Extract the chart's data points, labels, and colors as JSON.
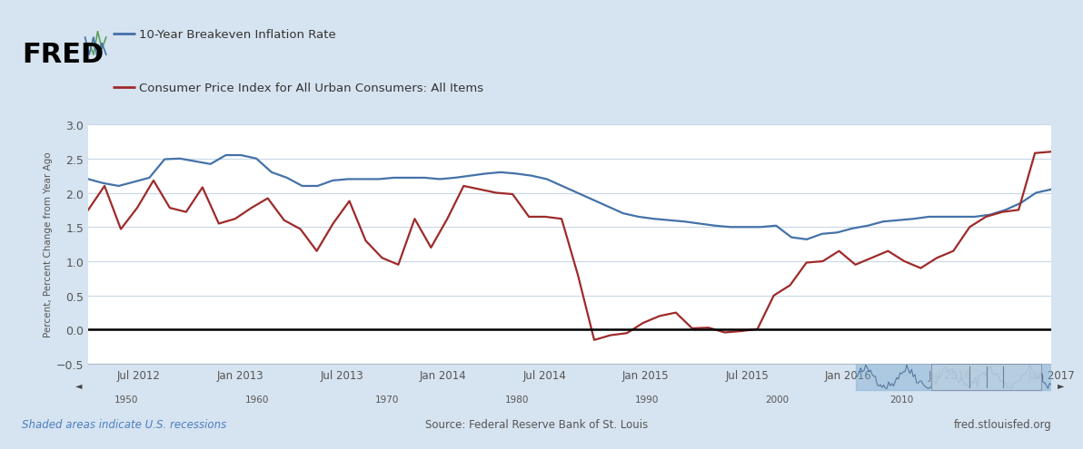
{
  "legend1": "10-Year Breakeven Inflation Rate",
  "legend2": "Consumer Price Index for All Urban Consumers: All Items",
  "ylabel": "Percent, Percent Change from Year Ago",
  "ylim": [
    -0.5,
    3.0
  ],
  "yticks": [
    -0.5,
    0.0,
    0.5,
    1.0,
    1.5,
    2.0,
    2.5,
    3.0
  ],
  "xtick_labels": [
    "Jul 2012",
    "Jan 2013",
    "Jul 2013",
    "Jan 2014",
    "Jul 2014",
    "Jan 2015",
    "Jul 2015",
    "Jan 2016",
    "Jul 2016",
    "Jan 2017"
  ],
  "xtick_pos": [
    3,
    9,
    15,
    21,
    27,
    33,
    39,
    45,
    51,
    57
  ],
  "footer_left": "Shaded areas indicate U.S. recessions",
  "footer_center": "Source: Federal Reserve Bank of St. Louis",
  "footer_right": "fred.stlouisfed.org",
  "bg_color": "#d6e3f0",
  "plot_bg_color": "#ffffff",
  "blue_color": "#4472a8",
  "red_color": "#9e2a2a",
  "blue_line": [
    2.2,
    2.14,
    2.1,
    2.16,
    2.22,
    2.49,
    2.5,
    2.46,
    2.42,
    2.55,
    2.55,
    2.5,
    2.3,
    2.22,
    2.1,
    2.1,
    2.18,
    2.2,
    2.2,
    2.2,
    2.22,
    2.22,
    2.22,
    2.2,
    2.22,
    2.25,
    2.28,
    2.3,
    2.28,
    2.25,
    2.2,
    2.1,
    2.0,
    1.9,
    1.8,
    1.7,
    1.65,
    1.62,
    1.6,
    1.58,
    1.55,
    1.52,
    1.5,
    1.5,
    1.5,
    1.52,
    1.35,
    1.32,
    1.4,
    1.42,
    1.48,
    1.52,
    1.58,
    1.6,
    1.62,
    1.65,
    1.65,
    1.65,
    1.65,
    1.68,
    1.75,
    1.85,
    2.0,
    2.05
  ],
  "red_line": [
    1.75,
    2.1,
    1.47,
    1.78,
    2.18,
    1.78,
    1.72,
    2.08,
    1.55,
    1.62,
    1.78,
    1.92,
    1.6,
    1.47,
    1.15,
    1.55,
    1.88,
    1.3,
    1.05,
    0.95,
    1.62,
    1.2,
    1.62,
    2.1,
    2.05,
    2.0,
    1.98,
    1.65,
    1.65,
    1.62,
    0.8,
    -0.15,
    -0.08,
    -0.05,
    0.1,
    0.2,
    0.25,
    0.02,
    0.03,
    -0.04,
    -0.02,
    0.01,
    0.5,
    0.65,
    0.98,
    1.0,
    1.15,
    0.95,
    1.05,
    1.15,
    1.0,
    0.9,
    1.05,
    1.15,
    1.5,
    1.65,
    1.72,
    1.75,
    2.58,
    2.6
  ],
  "scroll_years": [
    "1950",
    "1960",
    "1970",
    "1980",
    "1990",
    "2000",
    "2010"
  ],
  "scroll_year_x": [
    0.04,
    0.175,
    0.31,
    0.445,
    0.58,
    0.715,
    0.845
  ]
}
